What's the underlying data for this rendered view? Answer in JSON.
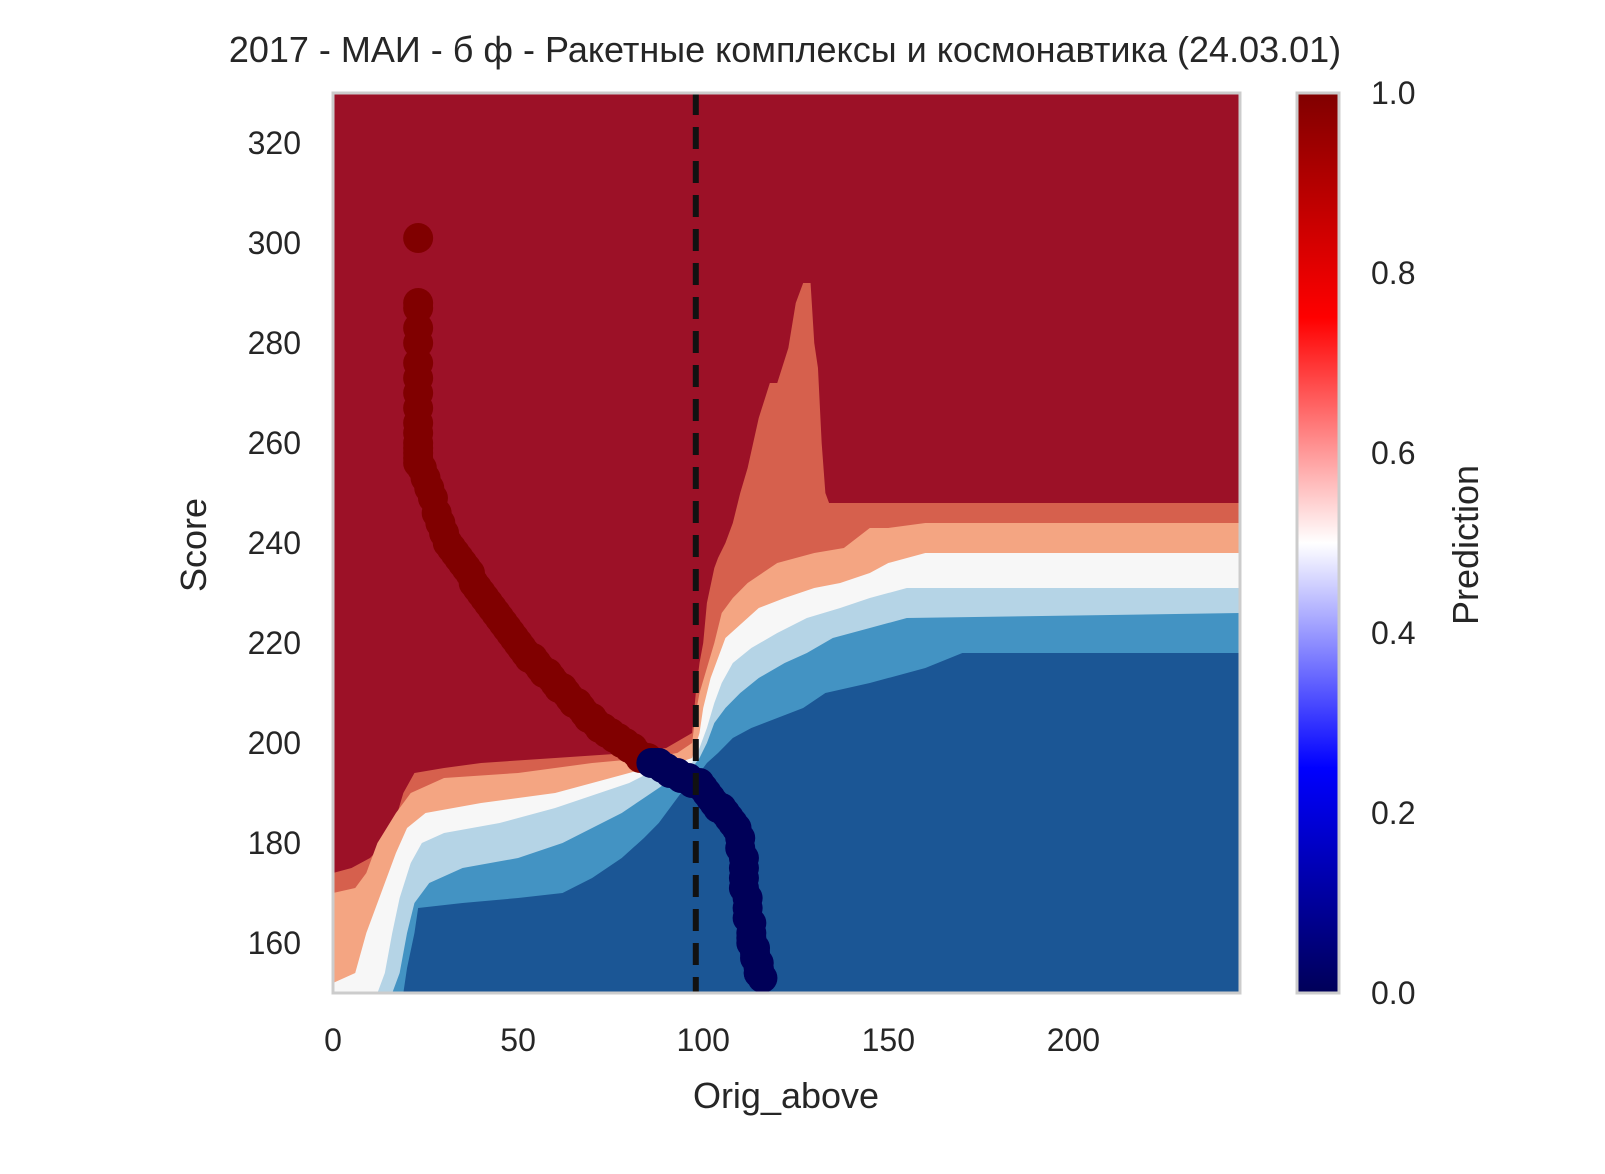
{
  "chart_data": {
    "type": "heatmap",
    "title": "2017 - МАИ - б ф - Ракетные комплексы и космонавтика (24.03.01)",
    "xlabel": "Orig_above",
    "ylabel": "Score",
    "xlim": [
      0,
      245
    ],
    "ylim": [
      150,
      330
    ],
    "x_ticks": [
      "0",
      "50",
      "100",
      "150",
      "200"
    ],
    "x_tick_values": [
      0,
      50,
      100,
      150,
      200
    ],
    "y_ticks": [
      "160",
      "180",
      "200",
      "220",
      "240",
      "260",
      "280",
      "300",
      "320"
    ],
    "y_tick_values": [
      160,
      180,
      200,
      220,
      240,
      260,
      280,
      300,
      320
    ],
    "grid": false,
    "threshold_line": {
      "x": 98,
      "style": "dashed",
      "color": "#111111"
    },
    "contour_levels": [
      {
        "name": "high",
        "color": "#9c1127"
      },
      {
        "name": "0.75",
        "color": "#d6604d"
      },
      {
        "name": "0.6",
        "color": "#f4a582"
      },
      {
        "name": "0.5",
        "color": "#f7f7f7"
      },
      {
        "name": "0.4",
        "color": "#b5d4e6"
      },
      {
        "name": "0.3",
        "color": "#4393c3"
      },
      {
        "name": "low",
        "color": "#1b5695"
      }
    ],
    "contour_boundaries": [
      {
        "level": "0.75",
        "points": [
          [
            0,
            174
          ],
          [
            5,
            175
          ],
          [
            10,
            177
          ],
          [
            14,
            180
          ],
          [
            17,
            185
          ],
          [
            19,
            190
          ],
          [
            22,
            194
          ],
          [
            30,
            195
          ],
          [
            40,
            196
          ],
          [
            60,
            197
          ],
          [
            80,
            198
          ],
          [
            90,
            199
          ],
          [
            97,
            202
          ],
          [
            98,
            210
          ],
          [
            99,
            216
          ],
          [
            100,
            220
          ],
          [
            101,
            228
          ],
          [
            103,
            235
          ],
          [
            104,
            237
          ],
          [
            106,
            240
          ],
          [
            108,
            244
          ],
          [
            110,
            250
          ],
          [
            112,
            255
          ],
          [
            115,
            265
          ],
          [
            118,
            272
          ],
          [
            120,
            272
          ],
          [
            123,
            279
          ],
          [
            125,
            288
          ],
          [
            127,
            292
          ],
          [
            129,
            292
          ],
          [
            130,
            280
          ],
          [
            131,
            275
          ],
          [
            132,
            260
          ],
          [
            133,
            250
          ],
          [
            134,
            248
          ],
          [
            140,
            248
          ],
          [
            150,
            248
          ],
          [
            200,
            248
          ],
          [
            245,
            248
          ]
        ]
      },
      {
        "level": "0.6",
        "points": [
          [
            0,
            170
          ],
          [
            6,
            171
          ],
          [
            9,
            174
          ],
          [
            12,
            180
          ],
          [
            17,
            186
          ],
          [
            21,
            190
          ],
          [
            30,
            193
          ],
          [
            50,
            194
          ],
          [
            70,
            196
          ],
          [
            85,
            197
          ],
          [
            93,
            198
          ],
          [
            97,
            200
          ],
          [
            98,
            206
          ],
          [
            99,
            210
          ],
          [
            101,
            215
          ],
          [
            103,
            220
          ],
          [
            105,
            226
          ],
          [
            108,
            229
          ],
          [
            112,
            232
          ],
          [
            120,
            236
          ],
          [
            130,
            238
          ],
          [
            138,
            239
          ],
          [
            145,
            243
          ],
          [
            150,
            243
          ],
          [
            160,
            244
          ],
          [
            245,
            244
          ]
        ]
      },
      {
        "level": "0.5",
        "points": [
          [
            0,
            152
          ],
          [
            6,
            154
          ],
          [
            9,
            162
          ],
          [
            13,
            170
          ],
          [
            17,
            178
          ],
          [
            20,
            183
          ],
          [
            25,
            186
          ],
          [
            40,
            188
          ],
          [
            60,
            190
          ],
          [
            75,
            193
          ],
          [
            85,
            195
          ],
          [
            93,
            196
          ],
          [
            97,
            197
          ],
          [
            99,
            202
          ],
          [
            100,
            207
          ],
          [
            102,
            213
          ],
          [
            104,
            217
          ],
          [
            106,
            221
          ],
          [
            109,
            223
          ],
          [
            115,
            227
          ],
          [
            122,
            229
          ],
          [
            130,
            231
          ],
          [
            137,
            232
          ],
          [
            145,
            234
          ],
          [
            150,
            236
          ],
          [
            160,
            238
          ],
          [
            245,
            238
          ]
        ]
      },
      {
        "level": "0.4",
        "points": [
          [
            12,
            150
          ],
          [
            14,
            154
          ],
          [
            16,
            162
          ],
          [
            18,
            169
          ],
          [
            21,
            176
          ],
          [
            24,
            180
          ],
          [
            30,
            182
          ],
          [
            45,
            184
          ],
          [
            60,
            187
          ],
          [
            72,
            190
          ],
          [
            80,
            192
          ],
          [
            88,
            195
          ],
          [
            94,
            196
          ],
          [
            97,
            196
          ],
          [
            99,
            199
          ],
          [
            101,
            203
          ],
          [
            103,
            208
          ],
          [
            105,
            212
          ],
          [
            108,
            216
          ],
          [
            113,
            219
          ],
          [
            120,
            222
          ],
          [
            128,
            225
          ],
          [
            137,
            227
          ],
          [
            145,
            229
          ],
          [
            155,
            231
          ],
          [
            165,
            231
          ],
          [
            245,
            231
          ]
        ]
      },
      {
        "level": "0.3",
        "points": [
          [
            16,
            150
          ],
          [
            18,
            154
          ],
          [
            20,
            162
          ],
          [
            22,
            168
          ],
          [
            26,
            172
          ],
          [
            35,
            175
          ],
          [
            50,
            177
          ],
          [
            62,
            180
          ],
          [
            70,
            183
          ],
          [
            78,
            186
          ],
          [
            84,
            189
          ],
          [
            90,
            192
          ],
          [
            95,
            194
          ],
          [
            97,
            195
          ],
          [
            99,
            197
          ],
          [
            101,
            200
          ],
          [
            103,
            204
          ],
          [
            106,
            207
          ],
          [
            110,
            210
          ],
          [
            115,
            213
          ],
          [
            122,
            216
          ],
          [
            128,
            218
          ],
          [
            135,
            221
          ],
          [
            145,
            223
          ],
          [
            155,
            225
          ],
          [
            245,
            226
          ]
        ]
      },
      {
        "level": "low",
        "points": [
          [
            19,
            150
          ],
          [
            20,
            155
          ],
          [
            22,
            162
          ],
          [
            23,
            167
          ],
          [
            35,
            168
          ],
          [
            50,
            169
          ],
          [
            62,
            170
          ],
          [
            70,
            173
          ],
          [
            78,
            177
          ],
          [
            84,
            181
          ],
          [
            88,
            184
          ],
          [
            92,
            188
          ],
          [
            96,
            192
          ],
          [
            99,
            194
          ],
          [
            101,
            196
          ],
          [
            104,
            198
          ],
          [
            108,
            201
          ],
          [
            113,
            203
          ],
          [
            120,
            205
          ],
          [
            127,
            207
          ],
          [
            133,
            210
          ],
          [
            145,
            212
          ],
          [
            160,
            215
          ],
          [
            170,
            218
          ],
          [
            245,
            218
          ]
        ]
      }
    ],
    "series": [
      {
        "name": "",
        "color_low": "#000058",
        "color_high": "#800000",
        "x": [
          23,
          23,
          23,
          23,
          23,
          23,
          23,
          23,
          23,
          23,
          23,
          23,
          23,
          23,
          23,
          23,
          24,
          25,
          26,
          27,
          28,
          29,
          30,
          31,
          32,
          33,
          34,
          35,
          36,
          37,
          38,
          39,
          40,
          41,
          42,
          43,
          44,
          45,
          46,
          47,
          48,
          49,
          50,
          51,
          52,
          53,
          54,
          55,
          56,
          57,
          58,
          59,
          60,
          61,
          62,
          63,
          64,
          65,
          66,
          67,
          68,
          69,
          70,
          71,
          72,
          73,
          74,
          75,
          76,
          77,
          78,
          79,
          80,
          81,
          82,
          83,
          84,
          85,
          86,
          87,
          88,
          89,
          90,
          91,
          92,
          93,
          94,
          95,
          96,
          97,
          98,
          99,
          100,
          101,
          102,
          103,
          104,
          105,
          106,
          107,
          108,
          109,
          110,
          110,
          111,
          111,
          111,
          111,
          112,
          112,
          112,
          113,
          113,
          113,
          113,
          114,
          114,
          114,
          115,
          115,
          115,
          115,
          115,
          116
        ],
        "y": [
          301,
          288,
          287,
          283,
          280,
          276,
          273,
          270,
          267,
          264,
          262,
          260,
          259,
          258,
          257,
          256,
          255,
          253,
          251,
          249,
          246,
          244,
          242,
          240,
          239,
          238,
          237,
          236,
          235,
          234,
          232,
          231,
          230,
          229,
          228,
          227,
          226,
          225,
          224,
          223,
          222,
          221,
          220,
          219,
          218,
          217,
          217,
          216,
          215,
          214,
          214,
          213,
          212,
          211,
          211,
          210,
          209,
          208,
          208,
          207,
          206,
          205,
          205,
          204,
          203,
          203,
          202,
          202,
          201,
          201,
          200,
          200,
          199,
          199,
          198,
          197,
          197,
          197,
          196,
          196,
          196,
          195,
          195,
          194,
          194,
          194,
          193,
          193,
          193,
          192,
          192,
          192,
          191,
          190,
          189,
          188,
          187,
          187,
          186,
          185,
          184,
          183,
          181,
          179,
          177,
          175,
          173,
          171,
          169,
          167,
          165,
          164,
          162,
          161,
          160,
          159,
          158,
          157,
          156,
          155,
          155,
          154,
          154,
          153
        ],
        "pred": [
          1,
          1,
          1,
          1,
          1,
          1,
          1,
          1,
          1,
          1,
          1,
          1,
          1,
          1,
          1,
          1,
          1,
          1,
          1,
          1,
          1,
          1,
          1,
          1,
          1,
          1,
          1,
          1,
          1,
          1,
          1,
          1,
          1,
          1,
          1,
          1,
          1,
          1,
          1,
          1,
          1,
          1,
          1,
          1,
          1,
          1,
          1,
          1,
          1,
          1,
          1,
          1,
          1,
          1,
          1,
          1,
          1,
          1,
          1,
          1,
          1,
          1,
          1,
          1,
          1,
          1,
          1,
          1,
          1,
          1,
          1,
          1,
          1,
          1,
          1,
          1,
          1,
          1,
          0,
          0,
          0,
          0,
          0,
          0,
          0,
          0,
          0,
          0,
          0,
          0,
          0,
          0,
          0,
          0,
          0,
          0,
          0,
          0,
          0,
          0,
          0,
          0,
          0,
          0,
          0,
          0,
          0,
          0,
          0,
          0,
          0,
          0,
          0,
          0,
          0,
          0,
          0,
          0,
          0,
          0,
          0,
          0,
          0,
          0
        ]
      }
    ],
    "colorbar": {
      "label": "Prediction",
      "range": [
        0,
        1
      ],
      "ticks": [
        "0.0",
        "0.2",
        "0.4",
        "0.6",
        "0.8",
        "1.0"
      ],
      "tick_values": [
        0,
        0.2,
        0.4,
        0.6,
        0.8,
        1.0
      ],
      "colors": [
        "#000058",
        "#0000ff",
        "#ffffff",
        "#ff0000",
        "#800000"
      ]
    }
  }
}
